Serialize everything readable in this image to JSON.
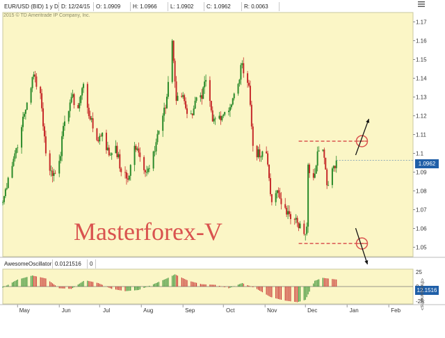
{
  "header": {
    "symbol": "EUR/USD (BID) 1 y D",
    "date": "D: 12/24/15",
    "open": "O: 1.0909",
    "high": "H: 1.0966",
    "low": "L: 1.0902",
    "close": "C: 1.0962",
    "range": "R: 0.0063",
    "copyright": "2015 © TD Ameritrade IP Company, Inc."
  },
  "watermark": "Masterforex-V",
  "oscillator": {
    "name": "AwesomeOscillator",
    "value": "0.0121516",
    "extra": "0",
    "badge": "12.1516",
    "unit": "<thousandths>"
  },
  "price_badge": "1.0962",
  "icons": {
    "menu": "menu-icon"
  },
  "colors": {
    "panel_bg": "#fbf6c6",
    "up": "#2a8a2a",
    "down": "#c62a2a",
    "annotation": "#d9534f",
    "accent": "#1f5fa8"
  },
  "chart_data": [
    {
      "type": "candlestick",
      "title": "EUR/USD (BID) 1 y D",
      "xlabel": "",
      "ylabel": "",
      "x_ticks": [
        "May",
        "Jun",
        "Jul",
        "Aug",
        "Sep",
        "Oct",
        "Nov",
        "Dec",
        "Jan",
        "Feb"
      ],
      "y_ticks": [
        "1.05",
        "1.06",
        "1.07",
        "1.08",
        "1.09",
        "1.1",
        "1.11",
        "1.12",
        "1.13",
        "1.14",
        "1.15",
        "1.16",
        "1.17"
      ],
      "ylim": [
        1.045,
        1.175
      ],
      "x_range": [
        "2015-04-20",
        "2016-02-19"
      ],
      "last_close": 1.0962,
      "series": [
        {
          "name": "daily close (approx.)",
          "points": [
            [
              "2015-04-20",
              1.074
            ],
            [
              "2015-04-24",
              1.087
            ],
            [
              "2015-04-29",
              1.1
            ],
            [
              "2015-05-04",
              1.114
            ],
            [
              "2015-05-08",
              1.127
            ],
            [
              "2015-05-13",
              1.142
            ],
            [
              "2015-05-18",
              1.132
            ],
            [
              "2015-05-22",
              1.1
            ],
            [
              "2015-05-27",
              1.088
            ],
            [
              "2015-06-01",
              1.096
            ],
            [
              "2015-06-05",
              1.117
            ],
            [
              "2015-06-10",
              1.13
            ],
            [
              "2015-06-15",
              1.124
            ],
            [
              "2015-06-19",
              1.137
            ],
            [
              "2015-06-24",
              1.118
            ],
            [
              "2015-06-29",
              1.107
            ],
            [
              "2015-07-03",
              1.111
            ],
            [
              "2015-07-08",
              1.099
            ],
            [
              "2015-07-13",
              1.104
            ],
            [
              "2015-07-17",
              1.09
            ],
            [
              "2015-07-22",
              1.086
            ],
            [
              "2015-07-27",
              1.104
            ],
            [
              "2015-07-31",
              1.098
            ],
            [
              "2015-08-05",
              1.09
            ],
            [
              "2015-08-10",
              1.101
            ],
            [
              "2015-08-14",
              1.112
            ],
            [
              "2015-08-19",
              1.124
            ],
            [
              "2015-08-24",
              1.16
            ],
            [
              "2015-08-27",
              1.128
            ],
            [
              "2015-09-01",
              1.131
            ],
            [
              "2015-09-06",
              1.117
            ],
            [
              "2015-09-10",
              1.128
            ],
            [
              "2015-09-15",
              1.129
            ],
            [
              "2015-09-18",
              1.139
            ],
            [
              "2015-09-23",
              1.117
            ],
            [
              "2015-09-28",
              1.12
            ],
            [
              "2015-10-02",
              1.122
            ],
            [
              "2015-10-07",
              1.126
            ],
            [
              "2015-10-12",
              1.137
            ],
            [
              "2015-10-15",
              1.148
            ],
            [
              "2015-10-20",
              1.136
            ],
            [
              "2015-10-23",
              1.104
            ],
            [
              "2015-10-28",
              1.098
            ],
            [
              "2015-11-02",
              1.1
            ],
            [
              "2015-11-06",
              1.074
            ],
            [
              "2015-11-11",
              1.079
            ],
            [
              "2015-11-16",
              1.071
            ],
            [
              "2015-11-20",
              1.065
            ],
            [
              "2015-11-25",
              1.063
            ],
            [
              "2015-11-30",
              1.057
            ],
            [
              "2015-12-02",
              1.061
            ],
            [
              "2015-12-03",
              1.094
            ],
            [
              "2015-12-07",
              1.087
            ],
            [
              "2015-12-10",
              1.101
            ],
            [
              "2015-12-14",
              1.102
            ],
            [
              "2015-12-17",
              1.083
            ],
            [
              "2015-12-21",
              1.092
            ],
            [
              "2015-12-24",
              1.0962
            ]
          ]
        }
      ],
      "annotations": [
        {
          "type": "hline",
          "y": 1.1065,
          "from": "2015-11-26",
          "to": "2016-01-16",
          "style": "dashed"
        },
        {
          "type": "hline",
          "y": 1.052,
          "from": "2015-11-26",
          "to": "2016-01-16",
          "style": "dashed"
        },
        {
          "type": "circle",
          "x": "2016-01-12",
          "y": 1.1065
        },
        {
          "type": "circle",
          "x": "2016-01-12",
          "y": 1.052
        },
        {
          "type": "arrow",
          "direction": "up",
          "x": "2016-01-12",
          "y": 1.1065
        },
        {
          "type": "arrow",
          "direction": "down",
          "x": "2016-01-12",
          "y": 1.052
        }
      ]
    },
    {
      "type": "histogram",
      "title": "AwesomeOscillator",
      "ylabel": "<thousandths>",
      "y_ticks": [
        "25",
        "0",
        "-25"
      ],
      "ylim": [
        -30,
        30
      ],
      "last_value": 12.1516,
      "envelope": [
        [
          "2015-04-20",
          -2
        ],
        [
          "2015-05-01",
          12
        ],
        [
          "2015-05-12",
          19
        ],
        [
          "2015-05-22",
          14
        ],
        [
          "2015-06-01",
          -3
        ],
        [
          "2015-06-10",
          -4
        ],
        [
          "2015-06-20",
          11
        ],
        [
          "2015-06-30",
          6
        ],
        [
          "2015-07-10",
          -4
        ],
        [
          "2015-07-20",
          -8
        ],
        [
          "2015-07-30",
          -6
        ],
        [
          "2015-08-10",
          4
        ],
        [
          "2015-08-20",
          14
        ],
        [
          "2015-08-26",
          21
        ],
        [
          "2015-09-05",
          10
        ],
        [
          "2015-09-15",
          4
        ],
        [
          "2015-09-25",
          3
        ],
        [
          "2015-10-05",
          -3
        ],
        [
          "2015-10-15",
          6
        ],
        [
          "2015-10-25",
          -3
        ],
        [
          "2015-11-05",
          -18
        ],
        [
          "2015-11-15",
          -24
        ],
        [
          "2015-11-25",
          -27
        ],
        [
          "2015-12-01",
          -23
        ],
        [
          "2015-12-08",
          10
        ],
        [
          "2015-12-14",
          15
        ],
        [
          "2015-12-24",
          12.15
        ]
      ]
    }
  ]
}
